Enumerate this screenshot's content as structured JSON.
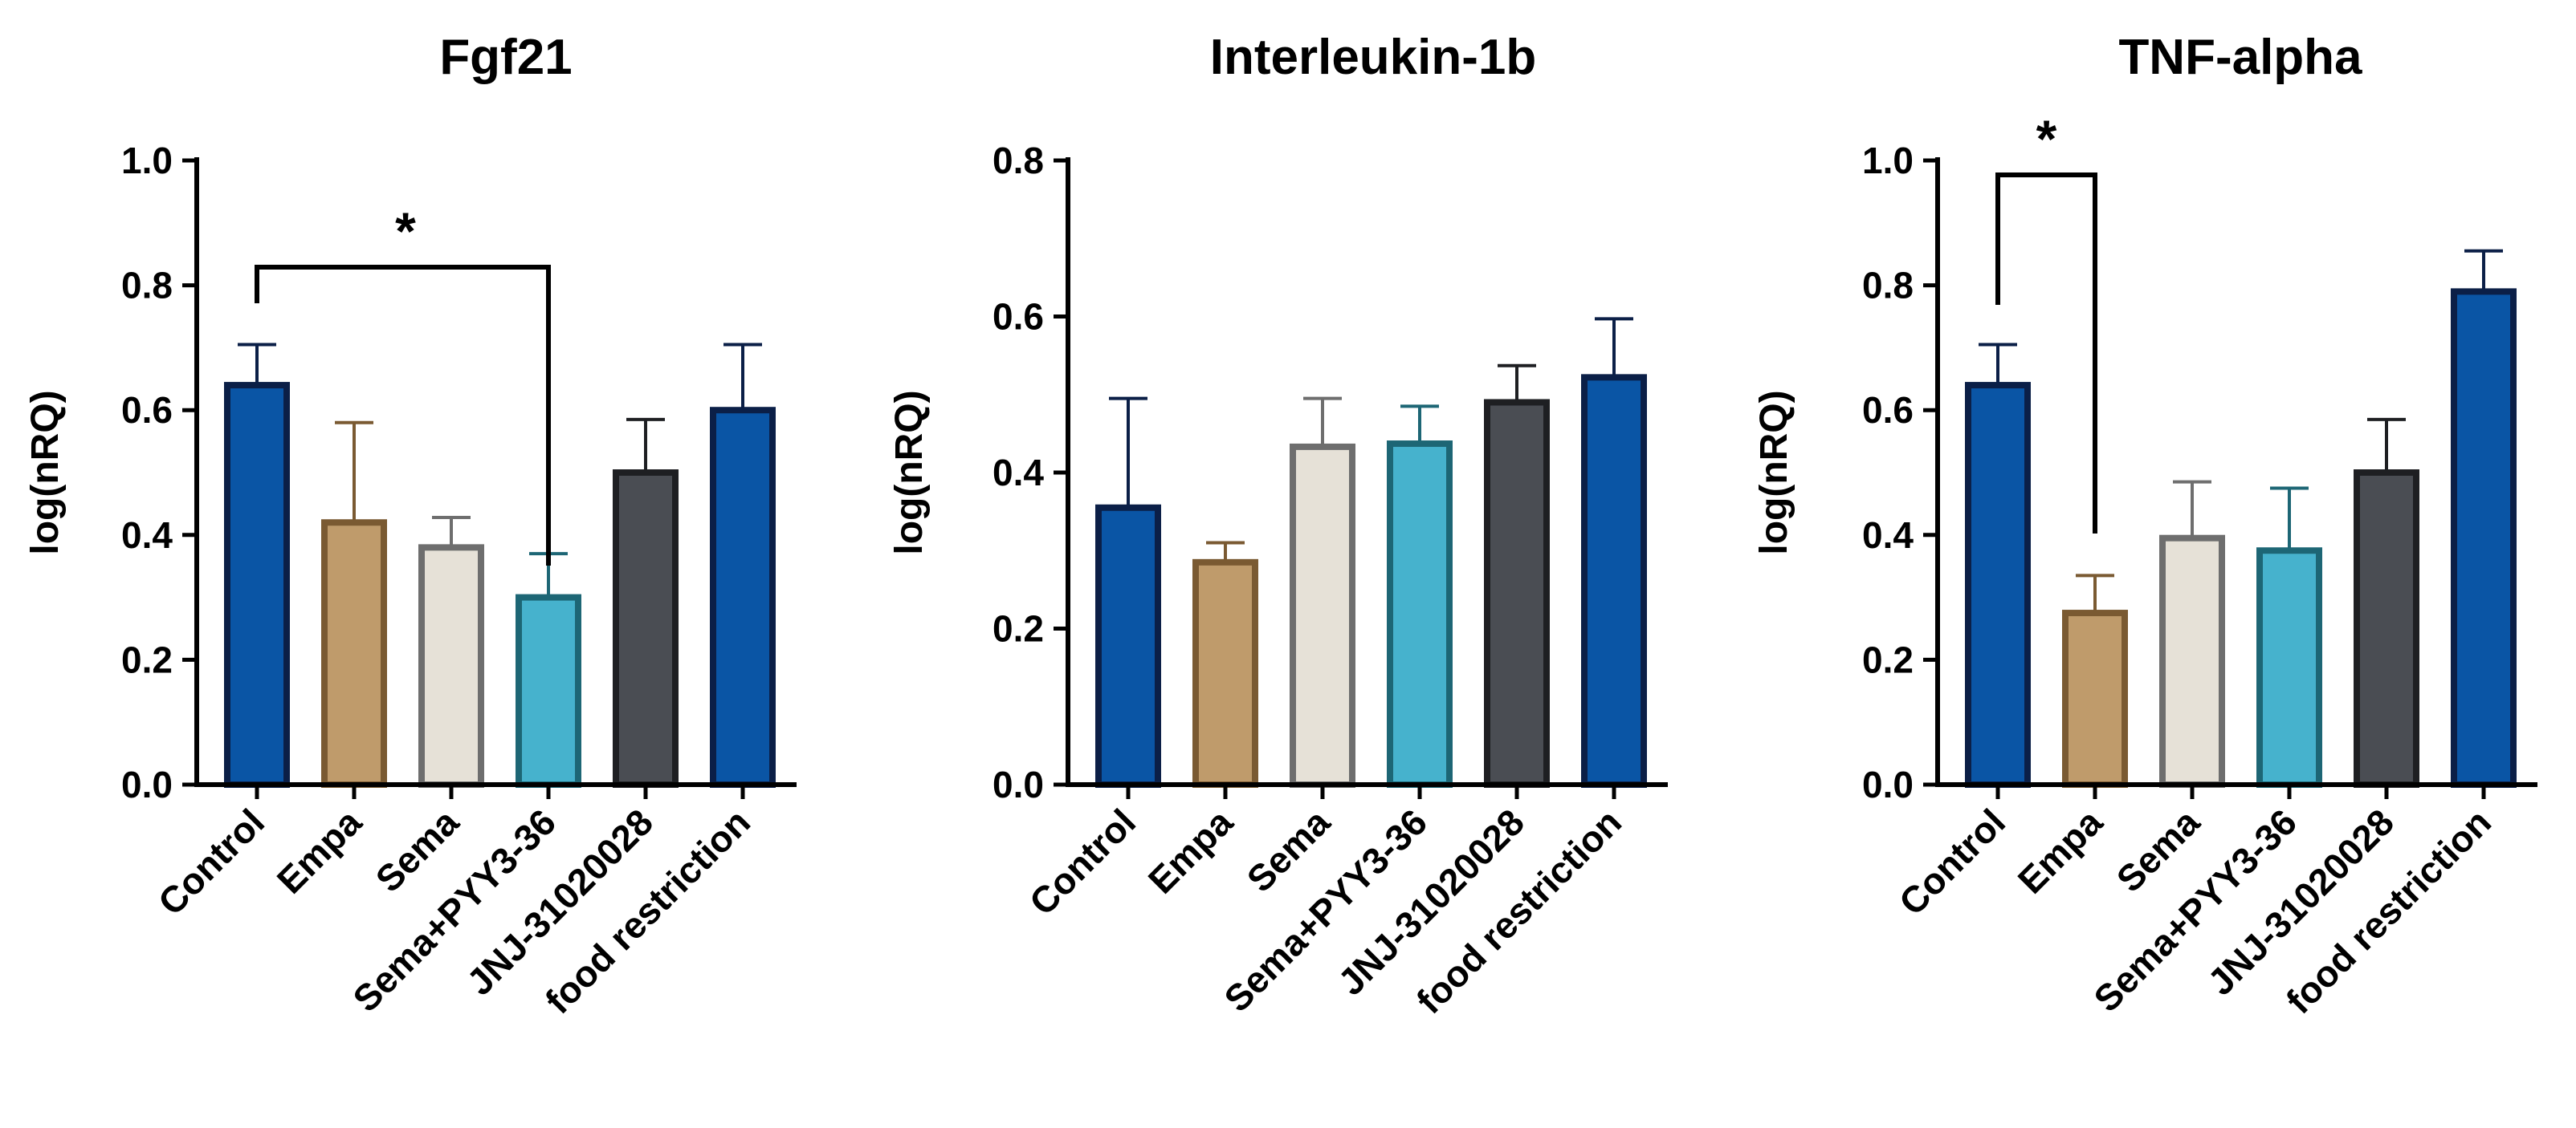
{
  "chart_data": [
    {
      "type": "bar",
      "title": "Fgf21",
      "xlabel": "",
      "ylabel": "log(nRQ)",
      "ylim": [
        0,
        1.0
      ],
      "yticks": [
        "0.0",
        "0.2",
        "0.4",
        "0.6",
        "0.8",
        "1.0"
      ],
      "categories": [
        "Control",
        "Empa",
        "Sema",
        "Sema+PYY3-36",
        "JNJ-31020028",
        "food restriction"
      ],
      "values": [
        0.64,
        0.42,
        0.38,
        0.3,
        0.5,
        0.6
      ],
      "errors": [
        0.065,
        0.16,
        0.048,
        0.07,
        0.085,
        0.105
      ],
      "fills": [
        "#0a55a5",
        "#bf9b6b",
        "#e6e1d7",
        "#46b2cd",
        "#4a4d53",
        "#0a55a5"
      ],
      "strokes": [
        "#0b1f47",
        "#7a5a32",
        "#6e6e6e",
        "#1d6675",
        "#1e1f22",
        "#0b1f47"
      ],
      "significance": [
        {
          "from": 0,
          "to": 3,
          "label": "*"
        }
      ]
    },
    {
      "type": "bar",
      "title": "Interleukin-1b",
      "xlabel": "",
      "ylabel": "log(nRQ)",
      "ylim": [
        0,
        0.8
      ],
      "yticks": [
        "0.0",
        "0.2",
        "0.4",
        "0.6",
        "0.8"
      ],
      "categories": [
        "Control",
        "Empa",
        "Sema",
        "Sema+PYY3-36",
        "JNJ-31020028",
        "food restriction"
      ],
      "values": [
        0.355,
        0.285,
        0.433,
        0.437,
        0.49,
        0.522
      ],
      "errors": [
        0.14,
        0.025,
        0.062,
        0.048,
        0.047,
        0.075
      ],
      "fills": [
        "#0a55a5",
        "#bf9b6b",
        "#e6e1d7",
        "#46b2cd",
        "#4a4d53",
        "#0a55a5"
      ],
      "strokes": [
        "#0b1f47",
        "#7a5a32",
        "#6e6e6e",
        "#1d6675",
        "#1e1f22",
        "#0b1f47"
      ],
      "significance": []
    },
    {
      "type": "bar",
      "title": "TNF-alpha",
      "xlabel": "",
      "ylabel": "log(nRQ)",
      "ylim": [
        0,
        1.0
      ],
      "yticks": [
        "0.0",
        "0.2",
        "0.4",
        "0.6",
        "0.8",
        "1.0"
      ],
      "categories": [
        "Control",
        "Empa",
        "Sema",
        "Sema+PYY3-36",
        "JNJ-31020028",
        "food restriction"
      ],
      "values": [
        0.64,
        0.275,
        0.395,
        0.375,
        0.5,
        0.79
      ],
      "errors": [
        0.065,
        0.06,
        0.09,
        0.1,
        0.085,
        0.065
      ],
      "fills": [
        "#0a55a5",
        "#bf9b6b",
        "#e6e1d7",
        "#46b2cd",
        "#4a4d53",
        "#0a55a5"
      ],
      "strokes": [
        "#0b1f47",
        "#7a5a32",
        "#6e6e6e",
        "#1d6675",
        "#1e1f22",
        "#0b1f47"
      ],
      "significance": [
        {
          "from": 0,
          "to": 1,
          "label": "*"
        }
      ]
    }
  ]
}
